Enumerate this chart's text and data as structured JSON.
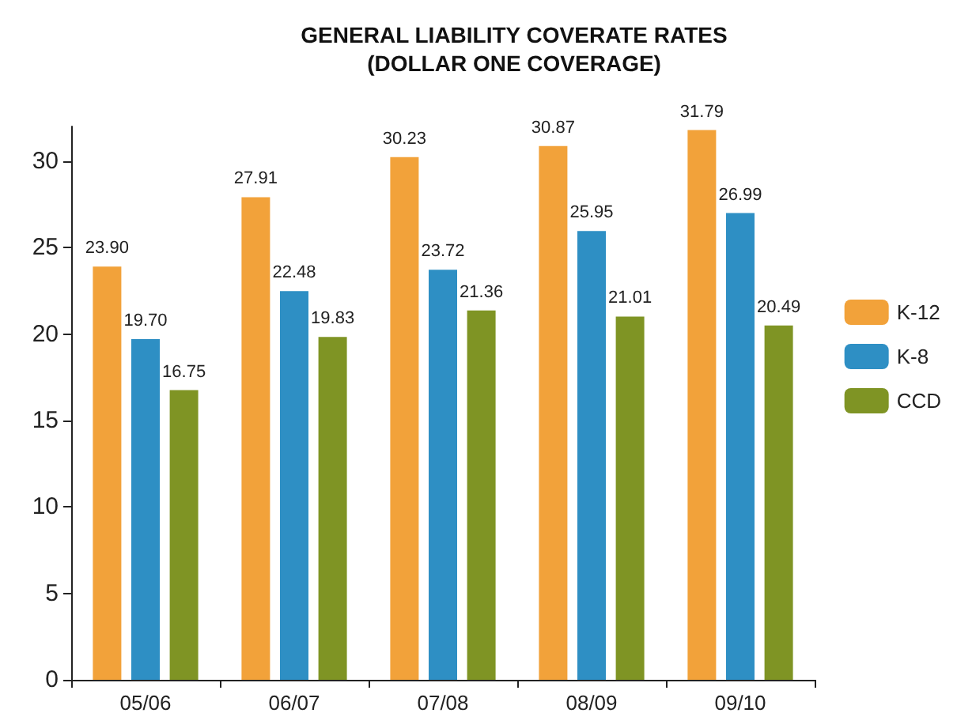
{
  "chart_data": {
    "type": "bar",
    "title": "GENERAL LIABILITY COVERATE RATES\n(DOLLAR ONE COVERAGE)",
    "categories": [
      "05/06",
      "06/07",
      "07/08",
      "08/09",
      "09/10"
    ],
    "series": [
      {
        "name": "K-12",
        "color": "#f2a23a",
        "values": [
          23.9,
          27.91,
          30.23,
          30.87,
          31.79
        ],
        "value_labels": [
          "23.90",
          "27.91",
          "30.23",
          "30.87",
          "31.79"
        ]
      },
      {
        "name": "K-8",
        "color": "#2e8fc4",
        "values": [
          19.7,
          22.48,
          23.72,
          25.95,
          26.99
        ],
        "value_labels": [
          "19.70",
          "22.48",
          "23.72",
          "25.95",
          "26.99"
        ]
      },
      {
        "name": "CCD",
        "color": "#7f9424",
        "values": [
          16.75,
          19.83,
          21.36,
          21.01,
          20.49
        ],
        "value_labels": [
          "16.75",
          "19.83",
          "21.36",
          "21.01",
          "20.49"
        ]
      }
    ],
    "ylim": [
      0,
      32
    ],
    "yticks": [
      0,
      5,
      10,
      15,
      20,
      25,
      30
    ],
    "grid": false,
    "legend": "right"
  }
}
